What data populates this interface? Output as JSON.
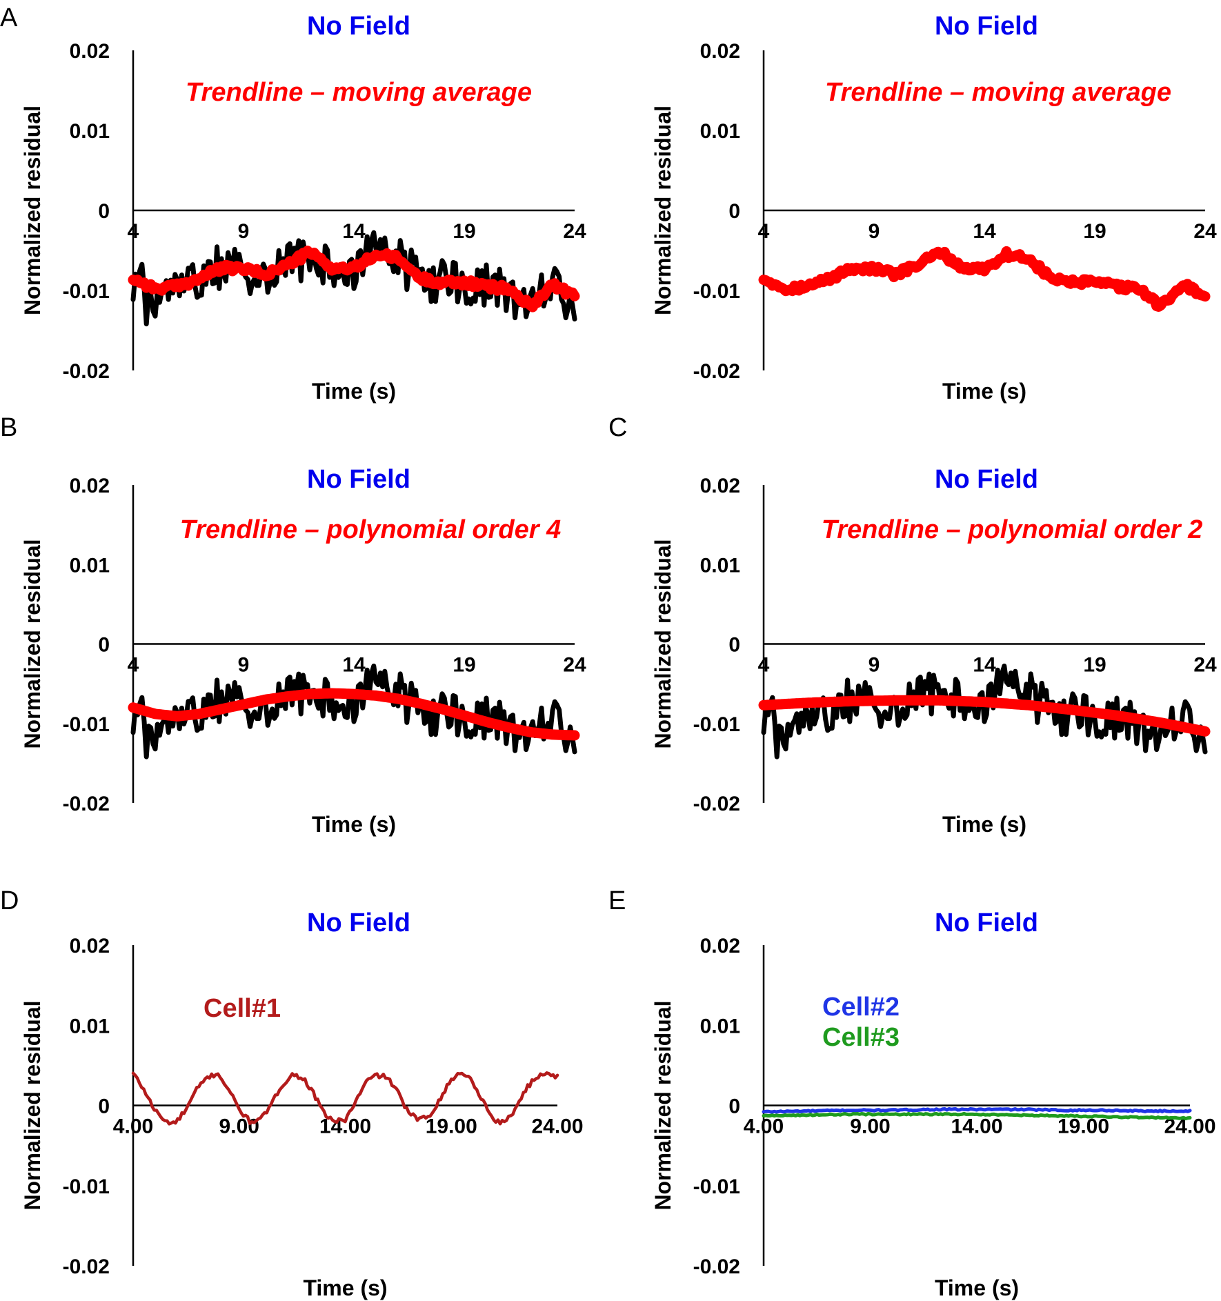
{
  "colors": {
    "title": "#0000ee",
    "trend": "#ff0000",
    "raw": "#000000",
    "cell1": "#b31b1b",
    "cell2": "#1f35e6",
    "cell3": "#1f9b1f"
  },
  "chart_data": [
    {
      "id": "A-left",
      "panel_letter": "A",
      "type": "line",
      "title": "No Field",
      "annotation": "Trendline – moving average",
      "xlabel": "Time (s)",
      "ylabel": "Normalized residual",
      "xlim": [
        4,
        24
      ],
      "ylim": [
        -0.02,
        0.02
      ],
      "yticks": [
        "0.02",
        "0.01",
        "0",
        "-0.01",
        "-0.02"
      ],
      "xticks": [
        "4",
        "9",
        "14",
        "19",
        "24"
      ],
      "series": [
        {
          "role": "raw",
          "x": [
            4,
            5,
            6,
            7,
            8,
            9,
            10,
            11,
            12,
            13,
            14,
            15,
            16,
            17,
            18,
            19,
            20,
            21,
            22,
            23,
            24
          ],
          "y": [
            -0.0085,
            -0.0105,
            -0.01,
            -0.0085,
            -0.007,
            -0.0075,
            -0.008,
            -0.007,
            -0.0055,
            -0.0075,
            -0.0075,
            -0.005,
            -0.006,
            -0.0085,
            -0.009,
            -0.009,
            -0.0095,
            -0.01,
            -0.0125,
            -0.009,
            -0.012
          ]
        },
        {
          "role": "trend",
          "x": [
            4,
            5,
            6,
            7,
            8,
            9,
            10,
            11,
            12,
            13,
            14,
            15,
            16,
            17,
            18,
            19,
            20,
            21,
            22,
            23,
            24
          ],
          "y": [
            -0.0085,
            -0.0098,
            -0.0095,
            -0.0085,
            -0.0072,
            -0.0073,
            -0.008,
            -0.0068,
            -0.0052,
            -0.0072,
            -0.0073,
            -0.0055,
            -0.006,
            -0.0085,
            -0.009,
            -0.009,
            -0.0095,
            -0.0098,
            -0.012,
            -0.0092,
            -0.0108
          ]
        }
      ]
    },
    {
      "id": "A-right",
      "panel_letter": "",
      "type": "line",
      "title": "No Field",
      "annotation": "Trendline – moving average",
      "xlabel": "Time (s)",
      "ylabel": "Normalized residual",
      "xlim": [
        4,
        24
      ],
      "ylim": [
        -0.02,
        0.02
      ],
      "yticks": [
        "0.02",
        "0.01",
        "0",
        "-0.01",
        "-0.02"
      ],
      "xticks": [
        "4",
        "9",
        "14",
        "19",
        "24"
      ],
      "series": [
        {
          "role": "trend",
          "x": [
            4,
            5,
            6,
            7,
            8,
            9,
            10,
            11,
            12,
            13,
            14,
            15,
            16,
            17,
            18,
            19,
            20,
            21,
            22,
            23,
            24
          ],
          "y": [
            -0.0085,
            -0.0098,
            -0.0095,
            -0.0085,
            -0.0072,
            -0.0073,
            -0.008,
            -0.0068,
            -0.0052,
            -0.0072,
            -0.0073,
            -0.0055,
            -0.006,
            -0.0085,
            -0.009,
            -0.009,
            -0.0095,
            -0.0098,
            -0.012,
            -0.0092,
            -0.0108
          ]
        }
      ]
    },
    {
      "id": "B",
      "panel_letter": "B",
      "type": "line",
      "title": "No Field",
      "annotation": "Trendline – polynomial order 4",
      "xlabel": "Time (s)",
      "ylabel": "Normalized residual",
      "xlim": [
        4,
        24
      ],
      "ylim": [
        -0.02,
        0.02
      ],
      "yticks": [
        "0.02",
        "0.01",
        "0",
        "-0.01",
        "-0.02"
      ],
      "xticks": [
        "4",
        "9",
        "14",
        "19",
        "24"
      ],
      "series": [
        {
          "role": "raw",
          "x": [
            4,
            5,
            6,
            7,
            8,
            9,
            10,
            11,
            12,
            13,
            14,
            15,
            16,
            17,
            18,
            19,
            20,
            21,
            22,
            23,
            24
          ],
          "y": [
            -0.0085,
            -0.0105,
            -0.01,
            -0.0085,
            -0.007,
            -0.0075,
            -0.008,
            -0.007,
            -0.0055,
            -0.0075,
            -0.0075,
            -0.005,
            -0.006,
            -0.0085,
            -0.009,
            -0.009,
            -0.0095,
            -0.01,
            -0.0125,
            -0.009,
            -0.012
          ]
        },
        {
          "role": "trend",
          "x": [
            4,
            5,
            6,
            7,
            8,
            9,
            10,
            11,
            12,
            13,
            14,
            15,
            16,
            17,
            18,
            19,
            20,
            21,
            22,
            23,
            24
          ],
          "y": [
            -0.008,
            -0.0088,
            -0.0091,
            -0.0088,
            -0.0082,
            -0.0076,
            -0.007,
            -0.0066,
            -0.0063,
            -0.0062,
            -0.0063,
            -0.0065,
            -0.0069,
            -0.0075,
            -0.0082,
            -0.009,
            -0.0098,
            -0.0105,
            -0.0111,
            -0.0114,
            -0.0115
          ]
        }
      ]
    },
    {
      "id": "C",
      "panel_letter": "C",
      "type": "line",
      "title": "No Field",
      "annotation": "Trendline – polynomial order 2",
      "xlabel": "Time (s)",
      "ylabel": "Normalized residual",
      "xlim": [
        4,
        24
      ],
      "ylim": [
        -0.02,
        0.02
      ],
      "yticks": [
        "0.02",
        "0.01",
        "0",
        "-0.01",
        "-0.02"
      ],
      "xticks": [
        "4",
        "9",
        "14",
        "19",
        "24"
      ],
      "series": [
        {
          "role": "raw",
          "x": [
            4,
            5,
            6,
            7,
            8,
            9,
            10,
            11,
            12,
            13,
            14,
            15,
            16,
            17,
            18,
            19,
            20,
            21,
            22,
            23,
            24
          ],
          "y": [
            -0.0085,
            -0.0105,
            -0.01,
            -0.0085,
            -0.007,
            -0.0075,
            -0.008,
            -0.007,
            -0.0055,
            -0.0075,
            -0.0075,
            -0.005,
            -0.006,
            -0.0085,
            -0.009,
            -0.009,
            -0.0095,
            -0.01,
            -0.0125,
            -0.009,
            -0.012
          ]
        },
        {
          "role": "trend",
          "x": [
            4,
            6,
            8,
            10,
            12,
            14,
            16,
            18,
            20,
            22,
            24
          ],
          "y": [
            -0.0077,
            -0.0074,
            -0.0072,
            -0.0071,
            -0.0071,
            -0.0073,
            -0.0077,
            -0.0083,
            -0.009,
            -0.0099,
            -0.011
          ]
        }
      ]
    },
    {
      "id": "D",
      "panel_letter": "D",
      "type": "line",
      "title": "No Field",
      "annotation": "",
      "xlabel": "Time (s)",
      "ylabel": "Normalized residual",
      "xlim": [
        4,
        24
      ],
      "ylim": [
        -0.02,
        0.02
      ],
      "yticks": [
        "0.02",
        "0.01",
        "0",
        "-0.01",
        "-0.02"
      ],
      "xticks": [
        "4.00",
        "9.00",
        "14.00",
        "19.00",
        "24.00"
      ],
      "legend": [
        "Cell#1"
      ],
      "series": [
        {
          "role": "cell1",
          "name": "Cell#1",
          "x": [
            4,
            4.5,
            5,
            5.5,
            6,
            6.5,
            7,
            7.5,
            8,
            8.5,
            9,
            9.5,
            10,
            10.5,
            11,
            11.5,
            12,
            12.5,
            13,
            13.5,
            14,
            14.5,
            15,
            15.5,
            16,
            16.5,
            17,
            17.5,
            18,
            18.5,
            19,
            19.5,
            20,
            20.5,
            21,
            21.5,
            22,
            22.5,
            23,
            23.5,
            24
          ],
          "y": [
            0.004,
            0.002,
            -0.0005,
            -0.002,
            -0.0022,
            -0.0005,
            0.002,
            0.0035,
            0.004,
            0.002,
            -0.0005,
            -0.002,
            -0.0018,
            0.0,
            0.0025,
            0.0038,
            0.0035,
            0.0015,
            -0.001,
            -0.002,
            -0.0018,
            0.0005,
            0.003,
            0.0038,
            0.0035,
            0.0015,
            -0.001,
            -0.0018,
            -0.0012,
            0.001,
            0.0032,
            0.0042,
            0.003,
            0.0005,
            -0.0018,
            -0.0022,
            -0.0005,
            0.002,
            0.0035,
            0.0042,
            0.0035
          ]
        }
      ]
    },
    {
      "id": "E",
      "panel_letter": "E",
      "type": "line",
      "title": "No Field",
      "annotation": "",
      "xlabel": "Time (s)",
      "ylabel": "Normalized residual",
      "xlim": [
        4,
        24
      ],
      "ylim": [
        -0.02,
        0.02
      ],
      "yticks": [
        "0.02",
        "0.01",
        "0",
        "-0.01",
        "-0.02"
      ],
      "xticks": [
        "4.00",
        "9.00",
        "14.00",
        "19.00",
        "24.00"
      ],
      "legend": [
        "Cell#2",
        "Cell#3"
      ],
      "series": [
        {
          "role": "cell2",
          "name": "Cell#2",
          "x": [
            4,
            6,
            8,
            10,
            12,
            14,
            16,
            18,
            20,
            22,
            24
          ],
          "y": [
            -0.0008,
            -0.0007,
            -0.0006,
            -0.0006,
            -0.0005,
            -0.0005,
            -0.0005,
            -0.0006,
            -0.0006,
            -0.0007,
            -0.0007
          ]
        },
        {
          "role": "cell3",
          "name": "Cell#3",
          "x": [
            4,
            6,
            8,
            10,
            12,
            14,
            16,
            18,
            20,
            22,
            24
          ],
          "y": [
            -0.0013,
            -0.0012,
            -0.0011,
            -0.0011,
            -0.0011,
            -0.0011,
            -0.0012,
            -0.0013,
            -0.0014,
            -0.0015,
            -0.0016
          ]
        }
      ]
    }
  ]
}
